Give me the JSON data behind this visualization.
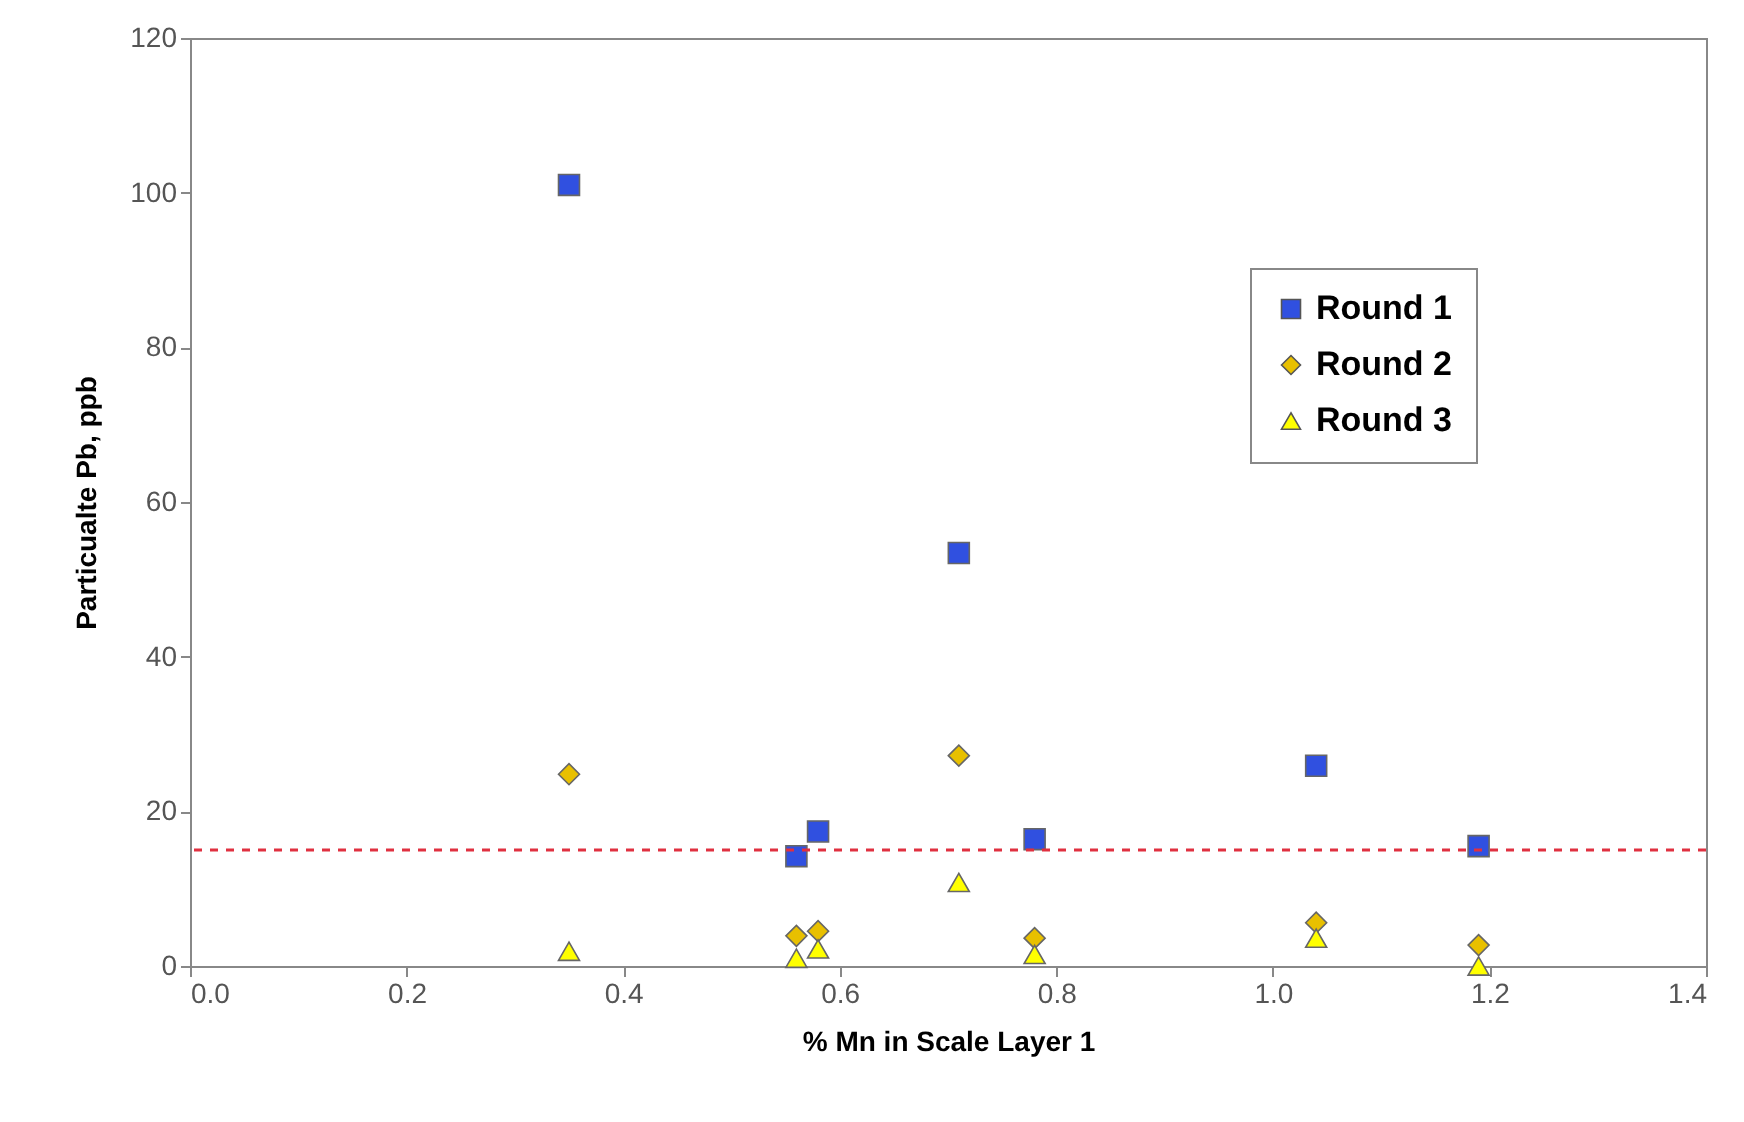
{
  "chart_data": {
    "type": "scatter",
    "xlabel": "% Mn in Scale Layer 1",
    "ylabel": "Particualte Pb, ppb",
    "xlim": [
      0,
      1.4
    ],
    "xticks": [
      {
        "value": 0,
        "label": "0.0"
      },
      0.2,
      0.4,
      0.6,
      0.8,
      {
        "value": 1,
        "label": "1.0"
      },
      1.2,
      1.4
    ],
    "ylim": [
      0,
      120
    ],
    "yticks": [
      0,
      20,
      40,
      60,
      80,
      100,
      120
    ],
    "x": [
      0.35,
      0.56,
      0.58,
      0.71,
      0.78,
      1.04,
      1.19
    ],
    "legend": "top right",
    "grid": false,
    "series": [
      {
        "name": "Round 1",
        "color": "#3050e0",
        "marker": "square",
        "values": [
          101,
          14.2,
          17.4,
          53.4,
          16.4,
          25.9,
          15.5
        ]
      },
      {
        "name": "Round 2",
        "color": "#e8c000",
        "marker": "diamond",
        "values": [
          24.8,
          3.9,
          4.5,
          27.2,
          3.6,
          5.6,
          2.7
        ]
      },
      {
        "name": "Round 3",
        "color": "#ffff00",
        "marker": "triangle",
        "values": [
          1.9,
          1.0,
          2.2,
          10.8,
          1.5,
          3.6,
          0
        ]
      }
    ],
    "ref_lines": [
      {
        "axis": "y",
        "value": 15,
        "color": "#e03040",
        "line_style": "dashed"
      }
    ]
  }
}
